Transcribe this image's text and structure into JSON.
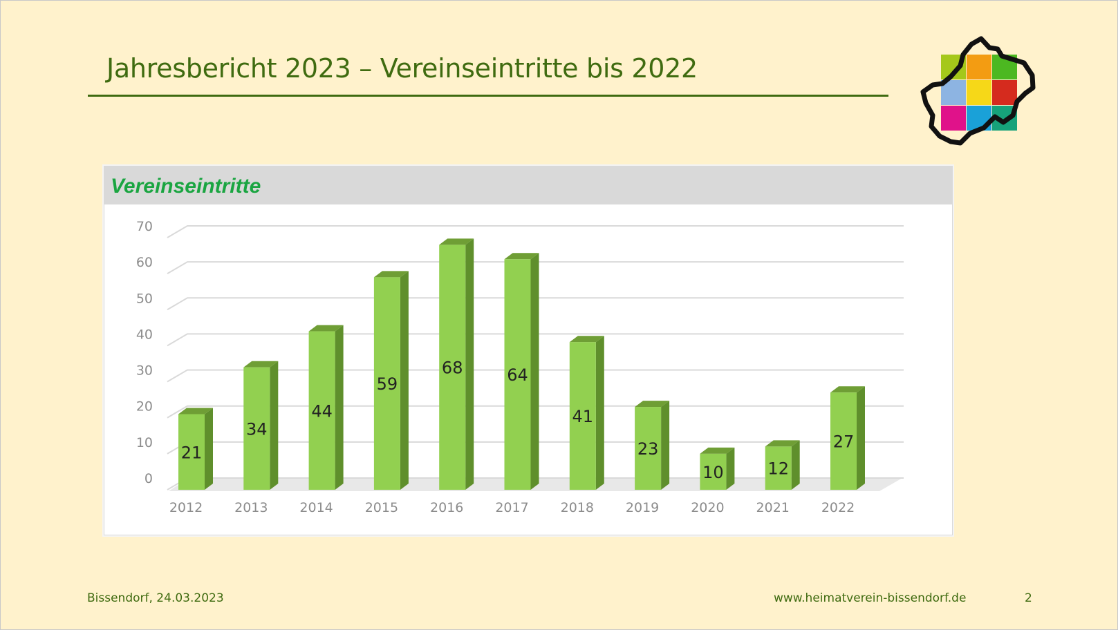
{
  "slide": {
    "title": "Jahresbericht 2023 – Vereinseintritte bis 2022",
    "footer_left": "Bissendorf, 24.03.2023",
    "footer_right": "www.heimatverein-bissendorf.de",
    "page_number": "2",
    "accent_color": "#3f6b10"
  },
  "logo": {
    "icon": "municipality-map-logo",
    "tile_colors": [
      "#a5c81a",
      "#f39c12",
      "#4cb821",
      "#8db4e2",
      "#f6d818",
      "#d52b1e",
      "#e0128a",
      "#1aa1d8",
      "#16a27a"
    ]
  },
  "chart_data": {
    "type": "bar",
    "title": "Vereinseintritte",
    "categories": [
      "2012",
      "2013",
      "2014",
      "2015",
      "2016",
      "2017",
      "2018",
      "2019",
      "2020",
      "2021",
      "2022"
    ],
    "values": [
      21,
      34,
      44,
      59,
      68,
      64,
      41,
      23,
      10,
      12,
      27
    ],
    "y_ticks": [
      "0",
      "10",
      "20",
      "30",
      "40",
      "50",
      "60",
      "70"
    ],
    "ylim": [
      0,
      70
    ],
    "grid": true,
    "legend": "none",
    "style": "3d-column",
    "bar_color": "#92d050",
    "title_color": "#1aa541"
  }
}
